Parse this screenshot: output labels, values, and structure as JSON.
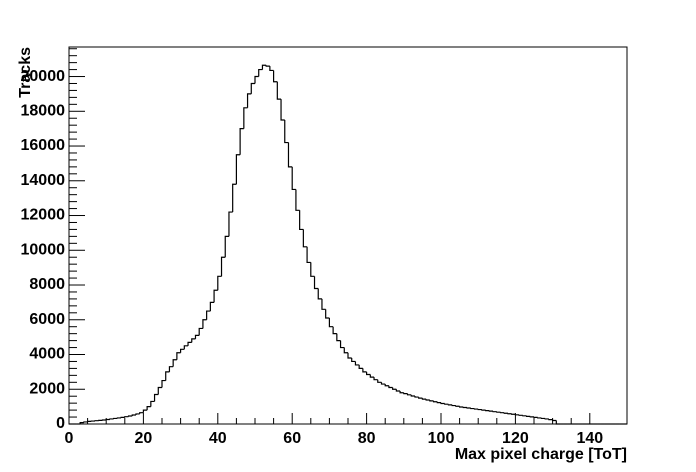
{
  "chart_data": {
    "type": "histogram",
    "x_label": "Max pixel charge [ToT]",
    "y_label": "Tracks",
    "color": "#000000",
    "bins": [
      0,
      1,
      2,
      3,
      4,
      5,
      6,
      7,
      8,
      9,
      10,
      11,
      12,
      13,
      14,
      15,
      16,
      17,
      18,
      19,
      20,
      21,
      22,
      23,
      24,
      25,
      26,
      27,
      28,
      29,
      30,
      31,
      32,
      33,
      34,
      35,
      36,
      37,
      38,
      39,
      40,
      41,
      42,
      43,
      44,
      45,
      46,
      47,
      48,
      49,
      50,
      51,
      52,
      53,
      54,
      55,
      56,
      57,
      58,
      59,
      60,
      61,
      62,
      63,
      64,
      65,
      66,
      67,
      68,
      69,
      70,
      71,
      72,
      73,
      74,
      75,
      76,
      77,
      78,
      79,
      80,
      81,
      82,
      83,
      84,
      85,
      86,
      87,
      88,
      89,
      90,
      91,
      92,
      93,
      94,
      95,
      96,
      97,
      98,
      99,
      100,
      101,
      102,
      103,
      104,
      105,
      106,
      107,
      108,
      109,
      110,
      111,
      112,
      113,
      114,
      115,
      116,
      117,
      118,
      119,
      120,
      121,
      122,
      123,
      124,
      125,
      126,
      127,
      128,
      129,
      130,
      131,
      132,
      133,
      134,
      135,
      136,
      137,
      138,
      139,
      140,
      141,
      142,
      143,
      144,
      145,
      146,
      147,
      148,
      149,
      150
    ],
    "counts": [
      0,
      0,
      0,
      80,
      120,
      150,
      170,
      190,
      210,
      230,
      260,
      290,
      320,
      350,
      380,
      420,
      460,
      520,
      580,
      650,
      800,
      1000,
      1300,
      1700,
      2100,
      2500,
      3000,
      3300,
      3700,
      4100,
      4300,
      4500,
      4700,
      4900,
      5100,
      5500,
      6000,
      6500,
      7000,
      7700,
      8500,
      9600,
      10800,
      12200,
      13800,
      15500,
      17000,
      18200,
      19000,
      19600,
      20000,
      20400,
      20650,
      20600,
      20350,
      19700,
      18700,
      17500,
      16200,
      14800,
      13500,
      12300,
      11200,
      10200,
      9300,
      8500,
      7800,
      7200,
      6600,
      6100,
      5600,
      5200,
      4800,
      4400,
      4100,
      3800,
      3600,
      3400,
      3200,
      3000,
      2850,
      2700,
      2550,
      2400,
      2300,
      2200,
      2100,
      2000,
      1900,
      1800,
      1750,
      1680,
      1610,
      1550,
      1490,
      1430,
      1380,
      1330,
      1280,
      1230,
      1180,
      1140,
      1100,
      1060,
      1020,
      980,
      950,
      920,
      890,
      860,
      830,
      800,
      770,
      740,
      710,
      680,
      650,
      620,
      590,
      560,
      530,
      500,
      470,
      440,
      410,
      380,
      350,
      320,
      290,
      250,
      200,
      0,
      0,
      0,
      0,
      0,
      0,
      0,
      0,
      0,
      0,
      0,
      0,
      0,
      0,
      0,
      0,
      0,
      0,
      0
    ],
    "xlim": [
      0,
      150
    ],
    "ylim": [
      0,
      21700
    ],
    "xticks": [
      0,
      20,
      40,
      60,
      80,
      100,
      120,
      140
    ],
    "yticks": [
      0,
      2000,
      4000,
      6000,
      8000,
      10000,
      12000,
      14000,
      16000,
      18000,
      20000
    ]
  }
}
